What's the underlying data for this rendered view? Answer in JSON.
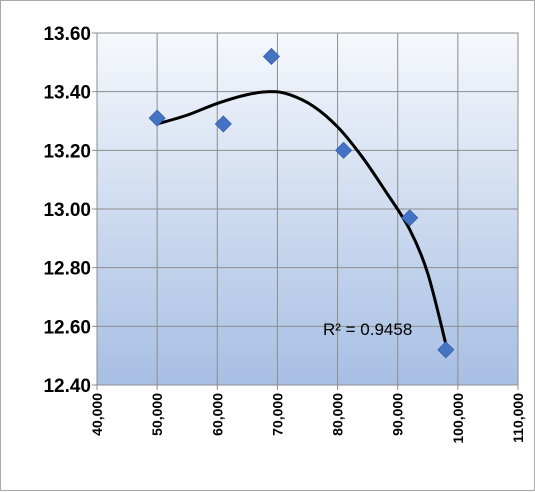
{
  "chart_data": {
    "type": "scatter",
    "title": "",
    "xlabel": "",
    "ylabel": "",
    "xlim": [
      40000,
      110000
    ],
    "ylim": [
      12.4,
      13.6
    ],
    "x_ticks": [
      "40,000",
      "50,000",
      "60,000",
      "70,000",
      "80,000",
      "90,000",
      "100,000",
      "110,000"
    ],
    "y_ticks": [
      "12.40",
      "12.60",
      "12.80",
      "13.00",
      "13.20",
      "13.40",
      "13.60"
    ],
    "grid": true,
    "series": [
      {
        "marker": "diamond",
        "color": "#4472c4",
        "points": [
          {
            "x": 50000,
            "y": 13.31
          },
          {
            "x": 61000,
            "y": 13.29
          },
          {
            "x": 69000,
            "y": 13.52
          },
          {
            "x": 81000,
            "y": 13.2
          },
          {
            "x": 92000,
            "y": 12.97
          },
          {
            "x": 98000,
            "y": 12.52
          }
        ]
      }
    ],
    "trendline": {
      "type": "polynomial",
      "color": "#000000",
      "x_from": 50000,
      "x_to": 98000,
      "curve": [
        {
          "x": 50000,
          "y": 13.29
        },
        {
          "x": 55000,
          "y": 13.32
        },
        {
          "x": 60000,
          "y": 13.36
        },
        {
          "x": 65000,
          "y": 13.39
        },
        {
          "x": 69000,
          "y": 13.4
        },
        {
          "x": 72000,
          "y": 13.39
        },
        {
          "x": 76000,
          "y": 13.35
        },
        {
          "x": 80000,
          "y": 13.28
        },
        {
          "x": 84000,
          "y": 13.18
        },
        {
          "x": 88000,
          "y": 13.06
        },
        {
          "x": 92000,
          "y": 12.93
        },
        {
          "x": 95000,
          "y": 12.78
        },
        {
          "x": 98000,
          "y": 12.54
        }
      ],
      "r_squared_label": "R² = 0.9458"
    }
  }
}
